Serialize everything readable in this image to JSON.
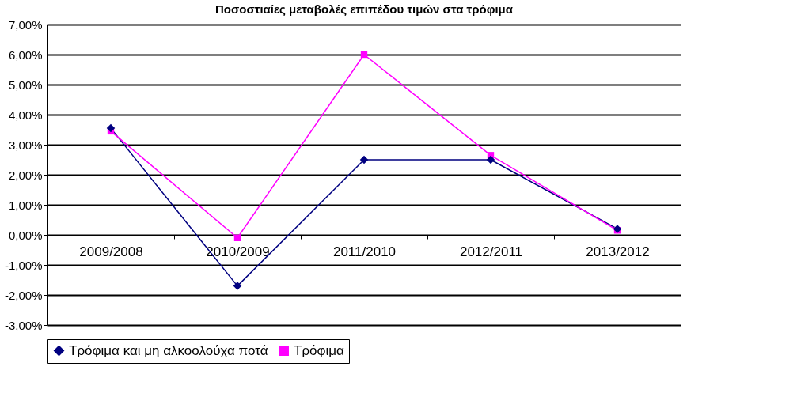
{
  "chart_data": {
    "type": "line",
    "title": "Ποσοστιαίες μεταβολές επιπέδου τιμών στα τρόφιμα",
    "categories": [
      "2009/2008",
      "2010/2009",
      "2011/2010",
      "2012/2011",
      "2013/2012"
    ],
    "series": [
      {
        "name": "Τρόφιμα και μη αλκοολούχα ποτά",
        "color": "#000080",
        "marker": "diamond",
        "values": [
          3.55,
          -1.7,
          2.5,
          2.5,
          0.2
        ]
      },
      {
        "name": "Τρόφιμα",
        "color": "#ff00ff",
        "marker": "square",
        "values": [
          3.45,
          -0.1,
          6.0,
          2.65,
          0.15
        ]
      }
    ],
    "ylim": [
      -3,
      7
    ],
    "yticks": [
      {
        "value": -3,
        "label": "-3,00%"
      },
      {
        "value": -2,
        "label": "-2,00%"
      },
      {
        "value": -1,
        "label": "-1,00%"
      },
      {
        "value": 0,
        "label": "0,00%"
      },
      {
        "value": 1,
        "label": "1,00%"
      },
      {
        "value": 2,
        "label": "2,00%"
      },
      {
        "value": 3,
        "label": "3,00%"
      },
      {
        "value": 4,
        "label": "4,00%"
      },
      {
        "value": 5,
        "label": "5,00%"
      },
      {
        "value": 6,
        "label": "6,00%"
      },
      {
        "value": 7,
        "label": "7,00%"
      }
    ],
    "grid": "y",
    "legend": "bottom",
    "line_style": "solid"
  }
}
